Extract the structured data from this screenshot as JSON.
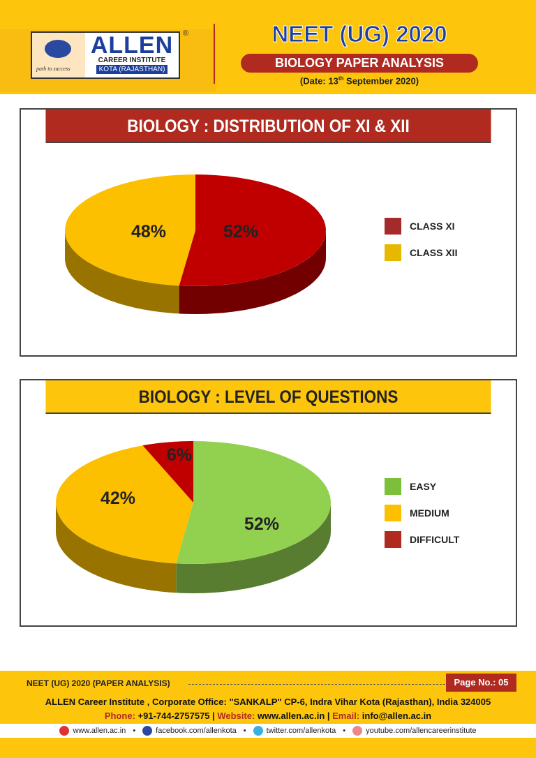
{
  "header": {
    "logo": {
      "brand": "ALLEN",
      "line1": "CAREER INSTITUTE",
      "line2": "KOTA (RAJASTHAN)",
      "tagline": "path to success",
      "reg": "®"
    },
    "title": "NEET (UG) 2020",
    "subtitle": "BIOLOGY PAPER ANALYSIS",
    "date_prefix": "(Date: 13",
    "date_sup": "th",
    "date_suffix": " September 2020)"
  },
  "colors": {
    "red": "#c00000",
    "yellow": "#fdc000",
    "green": "#92d050",
    "panel_red": "#b02a20",
    "panel_yellow": "#fdc60c"
  },
  "chart_data": [
    {
      "type": "pie",
      "title": "BIOLOGY : DISTRIBUTION OF XI & XII",
      "categories": [
        "CLASS XI",
        "CLASS XII"
      ],
      "values": [
        52,
        48
      ],
      "labels": [
        "52%",
        "48%"
      ],
      "colors": [
        "#c00000",
        "#fdc000"
      ],
      "legend_colors": [
        "#a52a2a",
        "#e6b800"
      ],
      "legend": "right"
    },
    {
      "type": "pie",
      "title": "BIOLOGY : LEVEL OF QUESTIONS",
      "categories": [
        "EASY",
        "MEDIUM",
        "DIFFICULT"
      ],
      "values": [
        52,
        42,
        6
      ],
      "labels": [
        "52%",
        "42%",
        "6%"
      ],
      "colors": [
        "#92d050",
        "#fdc000",
        "#c00000"
      ],
      "legend_colors": [
        "#7cbf3a",
        "#fdc000",
        "#b02a20"
      ],
      "legend": "right"
    }
  ],
  "footer": {
    "doc": "NEET (UG) 2020 (PAPER ANALYSIS)",
    "page": "Page No.: 05",
    "brand": "ALLEN",
    "address": " Career Institute , Corporate Office: \"SANKALP\" CP-6, Indra Vihar Kota (Rajasthan), India 324005",
    "phone_label": "Phone:",
    "phone": " +91-744-2757575 | ",
    "website_label": "Website:",
    "website": " www.allen.ac.in | ",
    "email_label": "Email:",
    "email": " info@allen.ac.in",
    "social": [
      "www.allen.ac.in",
      "facebook.com/allenkota",
      "twitter.com/allenkota",
      "youtube.com/allencareerinstitute"
    ],
    "separator": "•"
  }
}
